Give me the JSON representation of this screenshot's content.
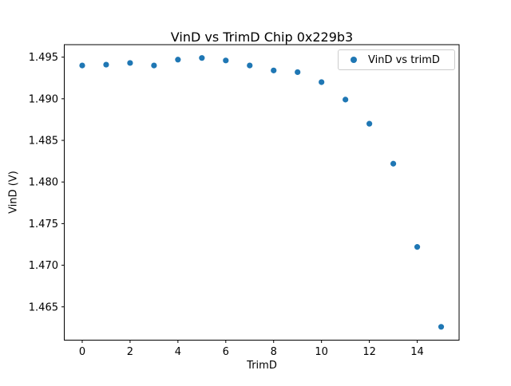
{
  "chart_data": {
    "type": "scatter",
    "title": "VinD vs TrimD Chip 0x229b3",
    "xlabel": "TrimD",
    "ylabel": "VinD (V)",
    "series": [
      {
        "name": "VinD vs trimD",
        "x": [
          0,
          1,
          2,
          3,
          4,
          5,
          6,
          7,
          8,
          9,
          10,
          11,
          12,
          13,
          14,
          15
        ],
        "y": [
          1.494,
          1.4941,
          1.4943,
          1.494,
          1.4947,
          1.4949,
          1.4946,
          1.494,
          1.4934,
          1.4932,
          1.492,
          1.4899,
          1.487,
          1.4822,
          1.4722,
          1.4626
        ]
      }
    ],
    "marker_color": "#1f77b4",
    "axis_color": "#000000",
    "legend_border_color": "#cccccc",
    "xticks": [
      0,
      2,
      4,
      6,
      8,
      10,
      12,
      14
    ],
    "yticks": [
      1.465,
      1.47,
      1.475,
      1.48,
      1.485,
      1.49,
      1.495
    ],
    "xlim": [
      -0.75,
      15.75
    ],
    "ylim": [
      1.461,
      1.4965
    ],
    "grid": false,
    "legend_position": "upper right"
  }
}
